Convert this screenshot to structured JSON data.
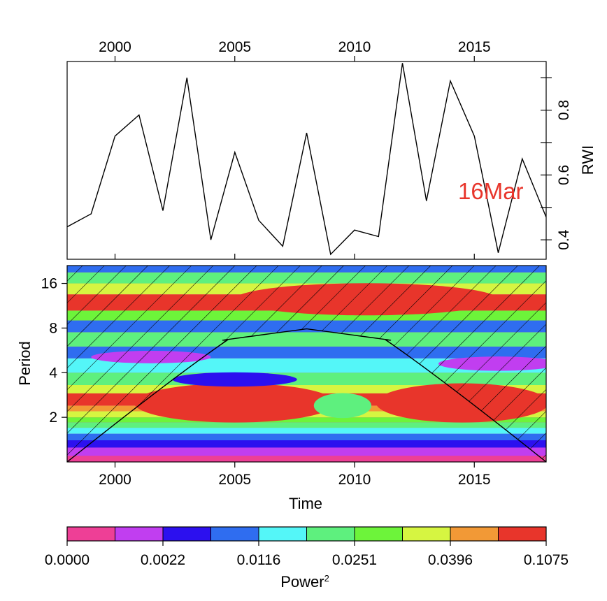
{
  "chart_data": [
    {
      "type": "line",
      "x": [
        1998,
        1999,
        2000,
        2001,
        2002,
        2003,
        2004,
        2005,
        2006,
        2007,
        2008,
        2009,
        2010,
        2011,
        2012,
        2013,
        2014,
        2015,
        2016,
        2017,
        2018
      ],
      "series": [
        {
          "values": [
            0.44,
            0.48,
            0.72,
            0.785,
            0.49,
            0.9,
            0.4,
            0.67,
            0.46,
            0.38,
            0.73,
            0.355,
            0.43,
            0.41,
            0.945,
            0.52,
            0.89,
            0.72,
            0.36,
            0.65,
            0.47
          ]
        }
      ],
      "xlim": [
        1998,
        2018
      ],
      "ylim": [
        0.34,
        0.95
      ],
      "xticks": [
        "2000",
        "2005",
        "2010",
        "2015"
      ],
      "yticks": [
        "0.4",
        "0.6",
        "0.8"
      ],
      "ylabel": "RWI",
      "annotation": "16Mar",
      "annotation_color": "#e8352b",
      "line_color": "#000000"
    },
    {
      "type": "heatmap",
      "xlim": [
        1998,
        2018
      ],
      "ylim_log2_period": [
        0,
        4.4
      ],
      "xticks": [
        "2000",
        "2005",
        "2010",
        "2015"
      ],
      "yticks": [
        "2",
        "4",
        "8",
        "16"
      ],
      "xlabel": "Time",
      "ylabel": "Period",
      "cone_of_influence": {
        "x": [
          1998,
          2008,
          2018
        ],
        "period": [
          1,
          7.9,
          1
        ]
      },
      "power_bands_by_period": [
        {
          "period": 1.1,
          "power_level": 0
        },
        {
          "period": 1.25,
          "power_level": 1
        },
        {
          "period": 1.4,
          "power_level": 2
        },
        {
          "period": 1.55,
          "power_level": 3
        },
        {
          "period": 1.7,
          "power_level": 4
        },
        {
          "period": 1.85,
          "power_level": 5
        },
        {
          "period": 2.0,
          "power_level": 6
        },
        {
          "period": 2.2,
          "power_level": 7
        },
        {
          "period": 2.4,
          "power_level": 8
        },
        {
          "period": 2.9,
          "power_level": 9
        },
        {
          "period": 3.3,
          "power_level": 7
        },
        {
          "period": 4.0,
          "power_level": 5
        },
        {
          "period": 5.0,
          "power_level": 4
        },
        {
          "period": 6.0,
          "power_level": 3
        },
        {
          "period": 7.5,
          "power_level": 5
        },
        {
          "period": 9.0,
          "power_level": 3
        },
        {
          "period": 10.5,
          "power_level": 6
        },
        {
          "period": 13.5,
          "power_level": 9
        },
        {
          "period": 16.0,
          "power_level": 7
        },
        {
          "period": 19.0,
          "power_level": 5
        },
        {
          "period": 21.5,
          "power_level": 3
        }
      ]
    }
  ],
  "colorbar": {
    "title": "Power",
    "title_superscript": "2",
    "tick_labels": [
      "0.0000",
      "0.0022",
      "0.0116",
      "0.0251",
      "0.0396",
      "0.1075"
    ],
    "colors": [
      "#ee3f96",
      "#c13ef0",
      "#2c10ef",
      "#2f6df0",
      "#54f6f8",
      "#5ef07e",
      "#6df43a",
      "#d6f541",
      "#f29936",
      "#e8352b"
    ]
  }
}
